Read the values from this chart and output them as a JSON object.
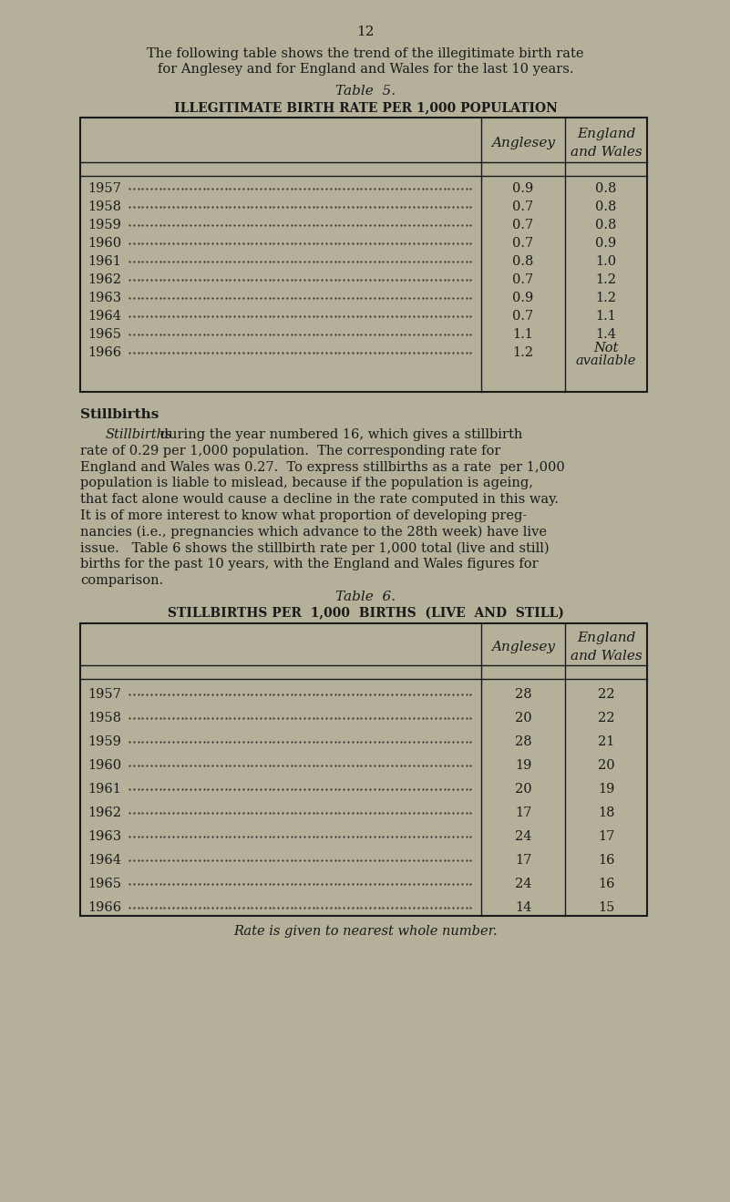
{
  "bg_color": "#b5b099",
  "page_number": "12",
  "intro_line1": "The following table shows the trend of the illegitimate birth rate",
  "intro_line2": "for Anglesey and for England and Wales for the last 10 years.",
  "table5_title_italic": "Table  5.",
  "table5_subtitle": "ILLEGITIMATE BIRTH RATE PER 1,000 POPULATION",
  "table5_col1_header": "Anglesey",
  "table5_col2_header_line1": "England",
  "table5_col2_header_line2": "and Wales",
  "table5_years": [
    "1957",
    "1958",
    "1959",
    "1960",
    "1961",
    "1962",
    "1963",
    "1964",
    "1965",
    "1966"
  ],
  "table5_anglesey": [
    "0.9",
    "0.7",
    "0.7",
    "0.7",
    "0.8",
    "0.7",
    "0.9",
    "0.7",
    "1.1",
    "1.2"
  ],
  "table5_ew": [
    "0.8",
    "0.8",
    "0.8",
    "0.9",
    "1.0",
    "1.2",
    "1.2",
    "1.1",
    "1.4",
    "Not|available"
  ],
  "stillbirths_heading": "Stillbirths",
  "para_line0_italic": "Stillbirths",
  "para_line0_normal": " during the year numbered 16, which gives a stillbirth",
  "para_lines": [
    "rate of 0.29 per 1,000 population.  The corresponding rate for",
    "England and Wales was 0.27.  To express stillbirths as a rate  per 1,000",
    "population is liable to mislead, because if the population is ageing,",
    "that fact alone would cause a decline in the rate computed in this way.",
    "It is of more interest to know what proportion of developing preg-",
    "nancies (i.e., pregnancies which advance to the 28th week) have live",
    "issue.   Table 6 shows the stillbirth rate per 1,000 total (live and still)",
    "births for the past 10 years, with the England and Wales figures for",
    "comparison."
  ],
  "table6_title_italic": "Table  6.",
  "table6_subtitle": "STILLBIRTHS PER  1,000  BIRTHS  (LIVE  AND  STILL)",
  "table6_col1_header": "Anglesey",
  "table6_col2_header_line1": "England",
  "table6_col2_header_line2": "and Wales",
  "table6_years": [
    "1957",
    "1958",
    "1959",
    "1960",
    "1961",
    "1962",
    "1963",
    "1964",
    "1965",
    "1966"
  ],
  "table6_anglesey": [
    "28",
    "20",
    "28",
    "19",
    "20",
    "17",
    "24",
    "17",
    "24",
    "14"
  ],
  "table6_ew": [
    "22",
    "22",
    "21",
    "20",
    "19",
    "18",
    "17",
    "16",
    "16",
    "15"
  ],
  "footer_note": "Rate is given to nearest whole number.",
  "text_color": "#1a1a1a"
}
